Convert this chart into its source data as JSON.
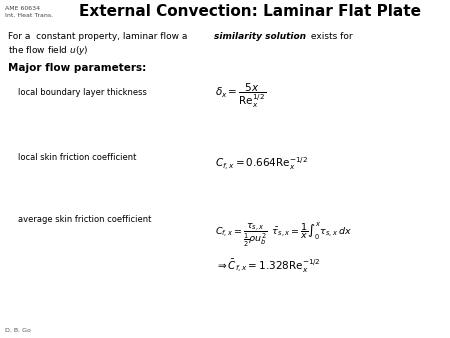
{
  "title": "External Convection: Laminar Flat Plate",
  "top_left_line1": "AME 60634",
  "top_left_line2": "Int. Heat Trans.",
  "bottom_left": "D. B. Go",
  "bg_color": "#ffffff",
  "title_color": "#000000",
  "text_color": "#000000"
}
